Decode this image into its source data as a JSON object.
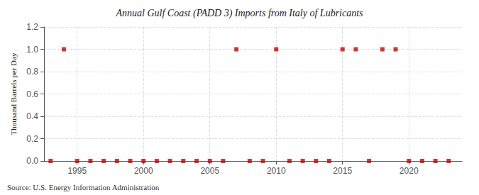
{
  "chart_data": {
    "type": "scatter",
    "title": "Annual Gulf Coast (PADD 3) Imports from Italy of Lubricants",
    "ylabel": "Thousand Barrels per Day",
    "annotation": "Source: U.S. Energy Information Administration",
    "x": [
      1993,
      1994,
      1995,
      1996,
      1997,
      1998,
      1999,
      2000,
      2001,
      2002,
      2003,
      2004,
      2005,
      2006,
      2007,
      2008,
      2009,
      2010,
      2011,
      2012,
      2013,
      2014,
      2015,
      2016,
      2017,
      2018,
      2019,
      2020,
      2021,
      2022,
      2023
    ],
    "values": [
      0,
      1,
      0,
      0,
      0,
      0,
      0,
      0,
      0,
      0,
      0,
      0,
      0,
      0,
      1,
      0,
      0,
      1,
      0,
      0,
      0,
      0,
      1,
      1,
      0,
      1,
      1,
      0,
      0,
      0,
      0
    ],
    "color": "#cc0000",
    "marker": "square",
    "xlim": [
      1992.5,
      2024
    ],
    "ylim": [
      0.0,
      1.2
    ],
    "xticks": [
      1995,
      2000,
      2005,
      2010,
      2015,
      2020
    ],
    "yticks": [
      {
        "value": 0.0,
        "label": "0.0"
      },
      0.2,
      0.4,
      0.6,
      0.8,
      {
        "value": 1.0,
        "label": "1.0"
      },
      1.2
    ],
    "grid": true
  }
}
